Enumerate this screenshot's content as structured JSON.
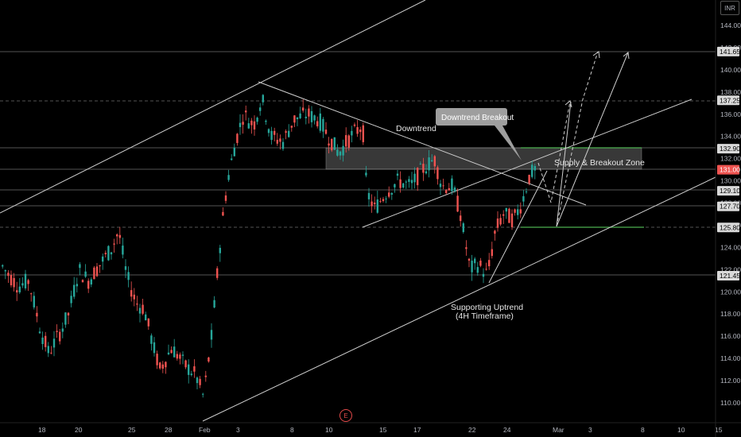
{
  "currency": "INR",
  "earnings_marker": "E",
  "colors": {
    "background": "#000000",
    "up_candle": "#26a69a",
    "down_candle": "#ef5350",
    "line": "#cfcfcf",
    "zone_outline": "#4caf50",
    "current_price_bg": "#ef5350"
  },
  "chart_data": {
    "type": "candlestick",
    "y_axis": {
      "ticks": [
        "144.00",
        "142.00",
        "140.00",
        "138.00",
        "136.00",
        "134.00",
        "132.00",
        "130.00",
        "128.00",
        "126.00",
        "124.00",
        "122.00",
        "120.00",
        "118.00",
        "116.00",
        "114.00",
        "112.00",
        "110.00"
      ],
      "range": [
        108.5,
        147.5
      ]
    },
    "x_axis": {
      "ticks": [
        "18",
        "20",
        "25",
        "28",
        "Feb",
        "3",
        "8",
        "10",
        "15",
        "17",
        "22",
        "24",
        "Mar",
        "3",
        "8",
        "10",
        "15"
      ]
    },
    "price_levels": [
      "141.65",
      "137.25",
      "132.90",
      "131.00",
      "129.10",
      "127.70",
      "125.80",
      "121.45"
    ],
    "current_price": "131.00",
    "annotations": {
      "downtrend": "Downtrend",
      "downtrend_breakout": "Downtrend Breakout",
      "supply_zone": "Supply & Breakout Zone",
      "supporting_uptrend": "Supporting Uptrend",
      "supporting_uptrend_sub": "(4H Timeframe)"
    }
  }
}
